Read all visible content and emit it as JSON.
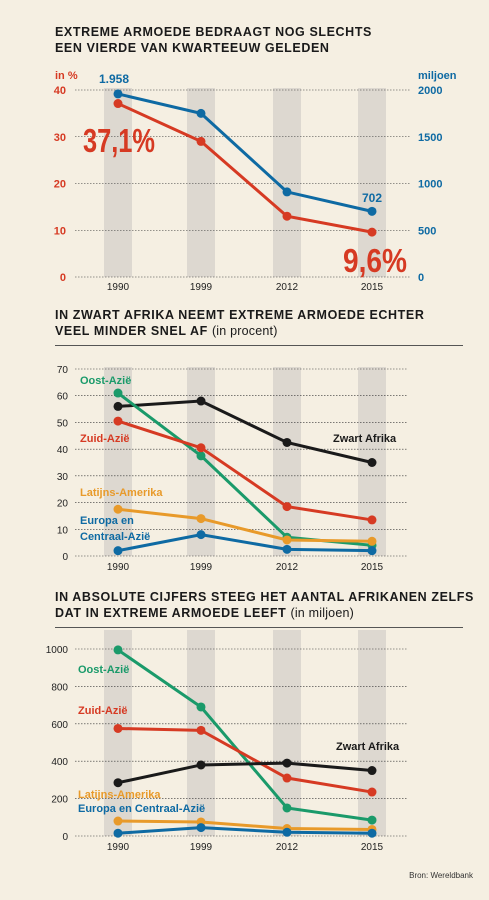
{
  "chart_data": [
    {
      "type": "line",
      "title": "EXTREME ARMOEDE BEDRAAGT NOG SLECHTS EEN VIERDE VAN KWARTEEUW GELEDEN",
      "title_lines": [
        "EXTREME ARMOEDE BEDRAAGT NOG SLECHTS",
        "EEN VIERDE VAN KWARTEEUW GELEDEN"
      ],
      "categories": [
        "1990",
        "1999",
        "2012",
        "2015"
      ],
      "ylabel_left": "in %",
      "ylabel_right": "miljoen",
      "ylim_left": [
        0,
        40
      ],
      "ylim_right": [
        0,
        2000
      ],
      "yticks_left": [
        0,
        10,
        20,
        30,
        40
      ],
      "yticks_right": [
        0,
        500,
        1000,
        1500,
        2000
      ],
      "series": [
        {
          "axis": "left",
          "color": "#d63a23",
          "values": [
            37.1,
            29,
            13,
            9.6
          ]
        },
        {
          "axis": "right",
          "color": "#0e6aa3",
          "values": [
            1958,
            1750,
            910,
            702
          ]
        }
      ],
      "annotations": {
        "pct_start": "37,1%",
        "pct_end": "9,6%",
        "mil_start": "1.958",
        "mil_end": "702"
      }
    },
    {
      "type": "line",
      "title": "IN ZWART AFRIKA NEEMT EXTREME ARMOEDE ECHTER VEEL MINDER SNEL AF",
      "title_lines": [
        "IN ZWART AFRIKA NEEMT EXTREME ARMOEDE ECHTER",
        "VEEL MINDER SNEL AF"
      ],
      "subtitle": "(in procent)",
      "categories": [
        "1990",
        "1999",
        "2012",
        "2015"
      ],
      "ylim": [
        0,
        70
      ],
      "yticks": [
        0,
        10,
        20,
        30,
        40,
        50,
        60,
        70
      ],
      "series": [
        {
          "name": "Zwart Afrika",
          "color": "#1a1a1a",
          "values": [
            56,
            58,
            42.5,
            35
          ]
        },
        {
          "name": "Oost-Azië",
          "color": "#1a9a6a",
          "values": [
            61,
            37.5,
            7,
            4
          ]
        },
        {
          "name": "Zuid-Azië",
          "color": "#d63a23",
          "values": [
            50.5,
            40.5,
            18.5,
            13.5
          ]
        },
        {
          "name": "Latijns-Amerika",
          "color": "#e89a2a",
          "values": [
            17.5,
            14,
            6,
            5.5
          ]
        },
        {
          "name": "Europa en Centraal-Azië",
          "color": "#0e6aa3",
          "values": [
            2,
            8,
            2.5,
            2
          ]
        }
      ],
      "labels": [
        {
          "text": "Oost-Azië",
          "color": "#1a9a6a"
        },
        {
          "text": "Zuid-Azië",
          "color": "#d63a23"
        },
        {
          "text": "Latijns-Amerika",
          "color": "#e89a2a"
        },
        {
          "text": "Europa en",
          "color": "#0e6aa3"
        },
        {
          "text": "Centraal-Azië",
          "color": "#0e6aa3"
        },
        {
          "text": "Zwart Afrika",
          "color": "#1a1a1a"
        }
      ]
    },
    {
      "type": "line",
      "title": "IN ABSOLUTE CIJFERS STEEG HET AANTAL AFRIKANEN ZELFS DAT IN EXTREME ARMOEDE LEEFT",
      "title_lines": [
        "IN ABSOLUTE CIJFERS STEEG HET AANTAL AFRIKANEN ZELFS",
        "DAT IN EXTREME ARMOEDE LEEFT"
      ],
      "subtitle": "(in miljoen)",
      "categories": [
        "1990",
        "1999",
        "2012",
        "2015"
      ],
      "ylim": [
        0,
        1000
      ],
      "yticks": [
        0,
        200,
        400,
        600,
        800,
        1000
      ],
      "series": [
        {
          "name": "Oost-Azië",
          "color": "#1a9a6a",
          "values": [
            995,
            690,
            150,
            85
          ]
        },
        {
          "name": "Zuid-Azië",
          "color": "#d63a23",
          "values": [
            575,
            565,
            310,
            235
          ]
        },
        {
          "name": "Zwart Afrika",
          "color": "#1a1a1a",
          "values": [
            285,
            380,
            390,
            350
          ]
        },
        {
          "name": "Latijns-Amerika",
          "color": "#e89a2a",
          "values": [
            80,
            75,
            40,
            35
          ]
        },
        {
          "name": "Europa en Centraal-Azië",
          "color": "#0e6aa3",
          "values": [
            15,
            45,
            20,
            15
          ]
        }
      ],
      "labels": [
        {
          "text": "Oost-Azië",
          "color": "#1a9a6a"
        },
        {
          "text": "Zuid-Azië",
          "color": "#d63a23"
        },
        {
          "text": "Zwart Afrika",
          "color": "#1a1a1a"
        },
        {
          "text": "Latijns-Amerika",
          "color": "#e89a2a"
        },
        {
          "text": "Europa en Centraal-Azië",
          "color": "#0e6aa3"
        }
      ]
    }
  ],
  "colors": {
    "band": "#ddd8d0",
    "background": "#f5efe2"
  },
  "source": "Bron: Wereldbank"
}
